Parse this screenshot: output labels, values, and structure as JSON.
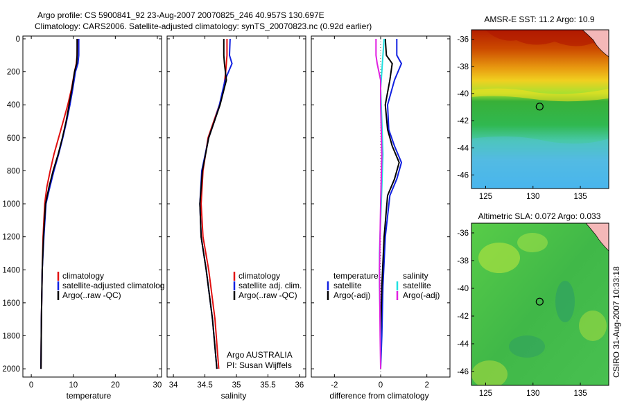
{
  "header": {
    "line1": "Argo profile: CS 5900841_92 23-Aug-2007 20070825_246 40.957S 130.697E",
    "line2": "Climatology: CARS2006. Satellite-adjusted climatology: synTS_20070823.nc (0.92d earlier)"
  },
  "side_label": "CSIRO 31-Aug-2007 10:33:18",
  "colors": {
    "red": "#e01010",
    "blue": "#1020e0",
    "black": "#000000",
    "cyan": "#20e0e0",
    "magenta": "#e020e0"
  },
  "chart_data": [
    {
      "type": "line",
      "name": "temperature-profile",
      "xlabel": "temperature",
      "ylabel": "",
      "xlim": [
        -2,
        31
      ],
      "ylim": [
        0,
        2050
      ],
      "xticks": [
        0,
        10,
        20,
        30
      ],
      "yticks": [
        0,
        200,
        400,
        600,
        800,
        1000,
        1200,
        1400,
        1600,
        1800,
        2000
      ],
      "series": [
        {
          "name": "climatology",
          "color": "red",
          "x": [
            11.0,
            10.9,
            10.7,
            10.3,
            9.6,
            8.7,
            7.6,
            6.5,
            5.4,
            4.5,
            3.7,
            3.2,
            2.8,
            2.6,
            2.4,
            2.3
          ],
          "y": [
            0,
            100,
            150,
            200,
            300,
            400,
            500,
            600,
            700,
            800,
            900,
            1000,
            1200,
            1400,
            1700,
            2000
          ]
        },
        {
          "name": "satellite-adjusted climatology",
          "color": "blue",
          "x": [
            11.3,
            11.3,
            11.1,
            10.5,
            9.9,
            9.2,
            8.4,
            7.5,
            6.5,
            5.4,
            4.4,
            3.5,
            3.0,
            2.6,
            2.4,
            2.3
          ],
          "y": [
            0,
            100,
            150,
            200,
            300,
            400,
            500,
            600,
            700,
            800,
            900,
            1000,
            1200,
            1400,
            1700,
            2000
          ]
        },
        {
          "name": "Argo(..raw -QC)",
          "color": "black",
          "x": [
            10.9,
            10.9,
            10.8,
            10.3,
            9.7,
            9.0,
            8.3,
            7.4,
            6.4,
            5.2,
            4.2,
            3.4,
            2.9,
            2.6,
            2.4,
            2.3
          ],
          "y": [
            0,
            100,
            150,
            200,
            300,
            400,
            500,
            600,
            700,
            800,
            900,
            1000,
            1200,
            1400,
            1700,
            2000
          ]
        }
      ],
      "legend": [
        "climatology",
        "satellite-adjusted climatolog",
        "Argo(..raw -QC)"
      ]
    },
    {
      "type": "line",
      "name": "salinity-profile",
      "xlabel": "salinity",
      "xlim": [
        33.9,
        36.1
      ],
      "ylim": [
        0,
        2050
      ],
      "xticks": [
        34,
        34.5,
        35,
        35.5,
        36
      ],
      "series": [
        {
          "name": "climatology",
          "color": "red",
          "x": [
            34.85,
            34.85,
            34.83,
            34.8,
            34.73,
            34.64,
            34.55,
            34.47,
            34.44,
            34.47,
            34.56,
            34.66,
            34.72
          ],
          "y": [
            0,
            100,
            200,
            300,
            400,
            500,
            600,
            800,
            1000,
            1200,
            1400,
            1700,
            2000
          ]
        },
        {
          "name": "satellite adj. clim.",
          "color": "blue",
          "x": [
            34.9,
            34.89,
            34.93,
            34.82,
            34.73,
            34.65,
            34.56,
            34.45,
            34.42,
            34.44,
            34.52,
            34.62,
            34.69
          ],
          "y": [
            0,
            100,
            150,
            250,
            400,
            500,
            600,
            800,
            1000,
            1200,
            1400,
            1700,
            2000
          ]
        },
        {
          "name": "Argo(..raw -QC)",
          "color": "black",
          "x": [
            34.8,
            34.8,
            34.81,
            34.84,
            34.74,
            34.65,
            34.56,
            34.46,
            34.42,
            34.44,
            34.52,
            34.62,
            34.69
          ],
          "y": [
            0,
            100,
            150,
            250,
            400,
            500,
            600,
            800,
            1000,
            1200,
            1400,
            1700,
            2000
          ]
        }
      ],
      "legend": [
        "climatology",
        "satellite adj. clim.",
        "Argo(..raw -QC)"
      ],
      "annotation": [
        "Argo AUSTRALIA",
        "PI: Susan Wijffels"
      ]
    },
    {
      "type": "line",
      "name": "difference-profile",
      "xlabel": "difference from climatology",
      "xlim": [
        -3,
        3
      ],
      "ylim": [
        0,
        2050
      ],
      "xticks": [
        -2,
        0,
        2
      ],
      "series": [
        {
          "name": "temperature satellite",
          "color": "blue",
          "x": [
            0.7,
            0.7,
            0.9,
            0.6,
            0.3,
            0.35,
            0.6,
            0.9,
            0.7,
            0.4,
            0.2,
            0.1,
            0.05,
            0.0
          ],
          "y": [
            0,
            100,
            150,
            250,
            400,
            550,
            650,
            750,
            850,
            950,
            1200,
            1500,
            1800,
            2000
          ]
        },
        {
          "name": "temperature Argo(-adj)",
          "color": "black",
          "x": [
            0.2,
            0.25,
            0.5,
            0.4,
            0.2,
            0.3,
            0.5,
            0.8,
            0.6,
            0.3,
            0.15,
            0.05,
            0.0,
            0.0
          ],
          "y": [
            0,
            100,
            150,
            250,
            400,
            550,
            650,
            750,
            850,
            950,
            1200,
            1500,
            1800,
            2000
          ]
        },
        {
          "name": "salinity satellite",
          "color": "cyan",
          "x": [
            0.15,
            0.1,
            0.05,
            0.0,
            0.05,
            0.1,
            0.05,
            0.0,
            -0.05,
            -0.05,
            0.0,
            0.0
          ],
          "y": [
            0,
            100,
            200,
            300,
            500,
            700,
            900,
            1100,
            1300,
            1500,
            1800,
            2000
          ]
        },
        {
          "name": "salinity Argo(-adj)",
          "color": "magenta",
          "x": [
            -0.2,
            -0.2,
            -0.15,
            0.0,
            0.0,
            0.05,
            0.0,
            -0.05,
            -0.02,
            0.0
          ],
          "y": [
            0,
            100,
            150,
            250,
            400,
            700,
            1000,
            1400,
            1800,
            2000
          ]
        }
      ],
      "legend_left_title": "temperature",
      "legend_right_title": "salinity",
      "legend_left": [
        "satellite",
        "Argo(-adj)"
      ],
      "legend_right": [
        "satellite",
        "Argo(-adj)"
      ]
    },
    {
      "type": "heatmap",
      "name": "sst-map",
      "title": "AMSR-E SST: 11.2 Argo: 10.9",
      "xticks": [
        125,
        130,
        135
      ],
      "yticks": [
        -36,
        -38,
        -40,
        -42,
        -44,
        -46
      ],
      "xlim": [
        123.5,
        138
      ],
      "ylim": [
        -47,
        -35.3
      ],
      "argo_position": [
        130.7,
        -40.96
      ]
    },
    {
      "type": "heatmap",
      "name": "sla-map",
      "title": "Altimetric SLA: 0.072 Argo: 0.033",
      "xticks": [
        125,
        130,
        135
      ],
      "yticks": [
        -36,
        -38,
        -40,
        -42,
        -44,
        -46
      ],
      "xlim": [
        123.5,
        138
      ],
      "ylim": [
        -47,
        -35.3
      ],
      "argo_position": [
        130.7,
        -40.96
      ]
    }
  ]
}
